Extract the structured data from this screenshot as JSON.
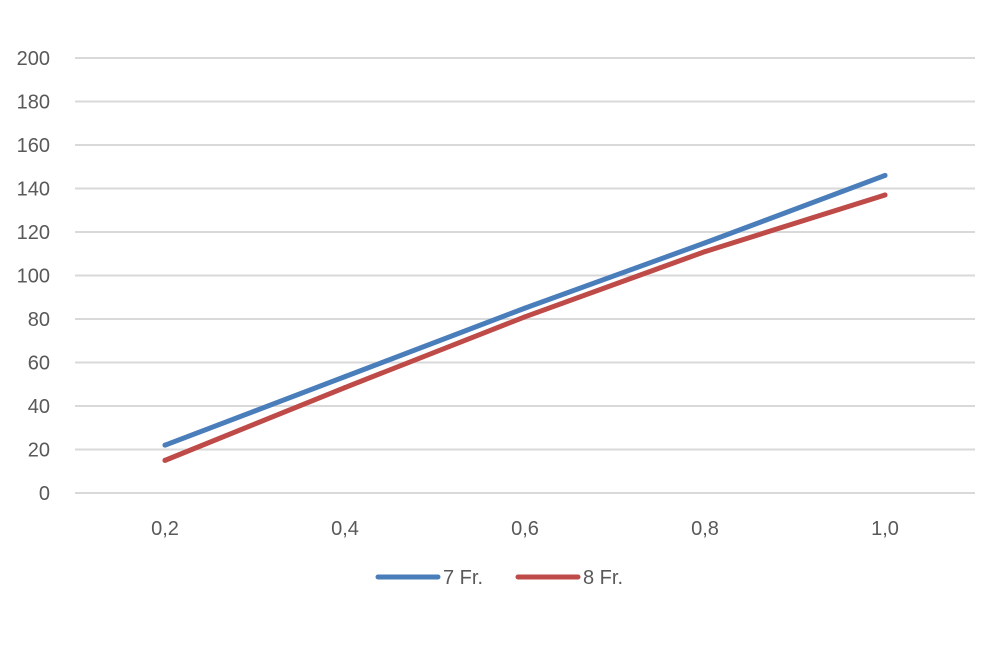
{
  "chart_data": {
    "type": "line",
    "title": "",
    "xlabel": "",
    "ylabel": "",
    "categories": [
      "0,2",
      "0,4",
      "0,6",
      "0,8",
      "1,0"
    ],
    "x": [
      0.2,
      0.4,
      0.6,
      0.8,
      1.0
    ],
    "ylim": [
      0,
      200
    ],
    "yticks": [
      0,
      20,
      40,
      60,
      80,
      100,
      120,
      140,
      160,
      180,
      200
    ],
    "ytick_labels": [
      "0",
      "20",
      "40",
      "60",
      "80",
      "100",
      "120",
      "140",
      "160",
      "180",
      "200"
    ],
    "grid": true,
    "legend_position": "bottom",
    "series": [
      {
        "name": "7 Fr.",
        "color": "#4a7ebb",
        "values": [
          22,
          53.5,
          85,
          115,
          146
        ]
      },
      {
        "name": "8 Fr.",
        "color": "#be4b48",
        "values": [
          15,
          48.5,
          81,
          111,
          137
        ]
      }
    ]
  }
}
